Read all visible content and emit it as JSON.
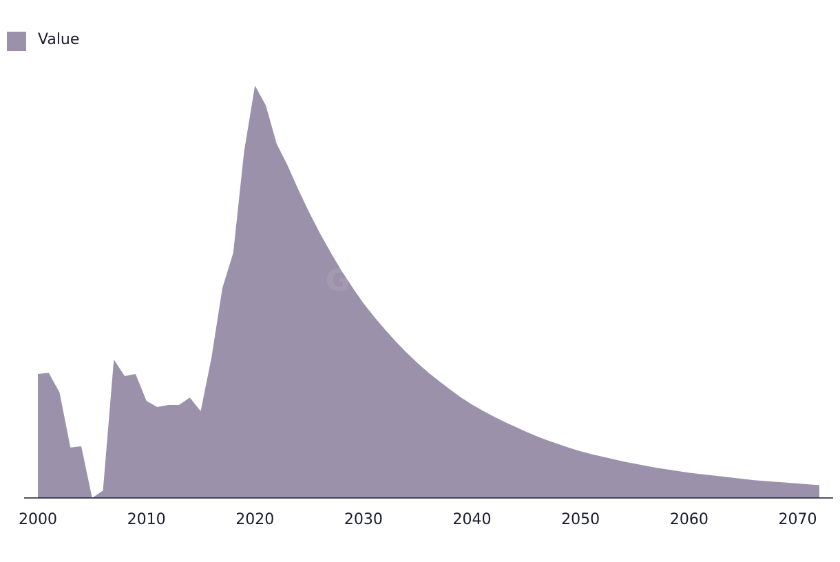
{
  "chart_data": {
    "type": "area",
    "watermark": "GlobalData",
    "x": [
      2000,
      2001,
      2002,
      2003,
      2004,
      2005,
      2006,
      2007,
      2008,
      2009,
      2010,
      2011,
      2012,
      2013,
      2014,
      2015,
      2016,
      2017,
      2018,
      2019,
      2020,
      2021,
      2022,
      2023,
      2024,
      2025,
      2026,
      2027,
      2028,
      2029,
      2030,
      2031,
      2032,
      2033,
      2034,
      2035,
      2036,
      2037,
      2038,
      2039,
      2040,
      2041,
      2042,
      2043,
      2044,
      2045,
      2046,
      2047,
      2048,
      2049,
      2050,
      2051,
      2052,
      2053,
      2054,
      2055,
      2056,
      2057,
      2058,
      2059,
      2060,
      2061,
      2062,
      2063,
      2064,
      2065,
      2066,
      2067,
      2068,
      2069,
      2070,
      2071,
      2072
    ],
    "series": [
      {
        "name": "Value",
        "color": "#9b91aa",
        "values": [
          30,
          30.3,
          25.5,
          12.2,
          12.5,
          0,
          1.8,
          33.5,
          29.5,
          30,
          23.5,
          22,
          22.5,
          22.5,
          24.3,
          21,
          34,
          50.8,
          59.3,
          83.8,
          99.8,
          95,
          85.7,
          80.5,
          74.6,
          69.1,
          64,
          59.3,
          54.9,
          50.9,
          47.1,
          43.8,
          40.7,
          37.8,
          35.1,
          32.6,
          30.3,
          28.2,
          26.2,
          24.3,
          22.6,
          21.1,
          19.7,
          18.4,
          17.2,
          16,
          14.9,
          13.9,
          13,
          12.1,
          11.3,
          10.6,
          10,
          9.4,
          8.8,
          8.3,
          7.8,
          7.3,
          6.9,
          6.5,
          6.1,
          5.8,
          5.5,
          5.2,
          4.9,
          4.6,
          4.3,
          4.1,
          3.9,
          3.7,
          3.5,
          3.3,
          3.1
        ]
      }
    ],
    "xlim": [
      2000,
      2072
    ],
    "xticks": [
      2000,
      2010,
      2020,
      2030,
      2040,
      2050,
      2060,
      2070
    ],
    "ylim": [
      0,
      100
    ],
    "legend": "top-left"
  }
}
